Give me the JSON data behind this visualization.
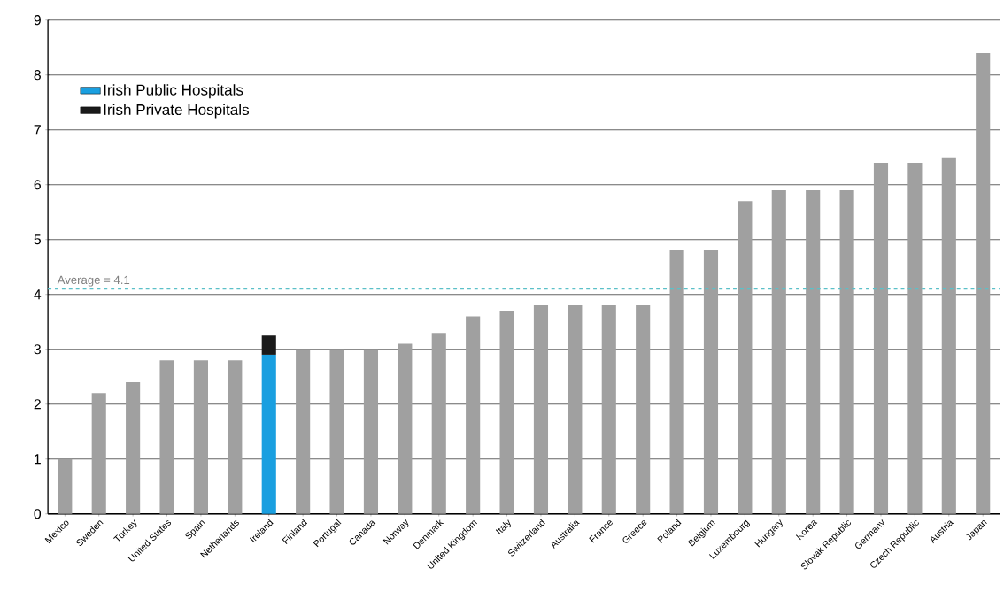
{
  "chart_data": {
    "type": "bar",
    "stacked": true,
    "categories": [
      "Mexico",
      "Sweden",
      "Turkey",
      "United States",
      "Spain",
      "Netherlands",
      "Ireland",
      "Finland",
      "Portugal",
      "Canada",
      "Norway",
      "Denmark",
      "United Kingdom",
      "Italy",
      "Switzerland",
      "Australia",
      "France",
      "Greece",
      "Poland",
      "Belgium",
      "Luxembourg",
      "Hungary",
      "Korea",
      "Slovak Republic",
      "Germany",
      "Czech Republic",
      "Austria",
      "Japan"
    ],
    "series": [
      {
        "name": "Irish Public Hospitals",
        "color": "#1a9fe0",
        "values": [
          null,
          null,
          null,
          null,
          null,
          null,
          2.9,
          null,
          null,
          null,
          null,
          null,
          null,
          null,
          null,
          null,
          null,
          null,
          null,
          null,
          null,
          null,
          null,
          null,
          null,
          null,
          null,
          null
        ]
      },
      {
        "name": "Irish Private Hospitals",
        "color": "#1a1a1a",
        "values": [
          null,
          null,
          null,
          null,
          null,
          null,
          0.35,
          null,
          null,
          null,
          null,
          null,
          null,
          null,
          null,
          null,
          null,
          null,
          null,
          null,
          null,
          null,
          null,
          null,
          null,
          null,
          null,
          null
        ]
      },
      {
        "color": "#a0a0a0",
        "values": [
          1.0,
          2.2,
          2.4,
          2.8,
          2.8,
          2.8,
          null,
          3.0,
          3.0,
          3.0,
          3.1,
          3.3,
          3.6,
          3.7,
          3.8,
          3.8,
          3.8,
          3.8,
          4.8,
          4.8,
          5.7,
          5.9,
          5.9,
          5.9,
          6.4,
          6.4,
          6.5,
          8.4
        ]
      }
    ],
    "ylim": [
      0,
      9
    ],
    "yticks": [
      0,
      1,
      2,
      3,
      4,
      5,
      6,
      7,
      8,
      9
    ],
    "grid": "y",
    "legend": "top left",
    "ref_lines": [
      {
        "axis": "y",
        "value": 4.1,
        "label": "Average = 4.1",
        "color": "#5bc0c8",
        "line_style": "dashed"
      }
    ]
  }
}
